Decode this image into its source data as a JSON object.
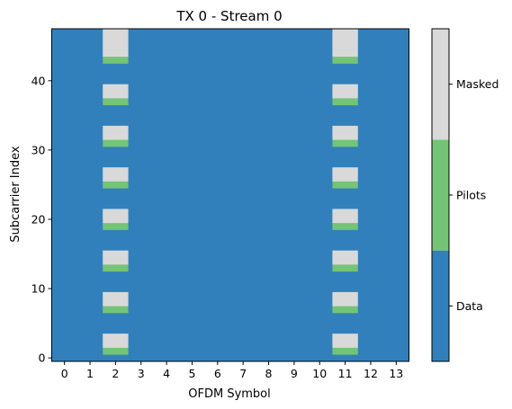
{
  "chart_data": {
    "type": "heatmap",
    "title": "TX 0 - Stream 0",
    "xlabel": "OFDM Symbol",
    "ylabel": "Subcarrier Index",
    "x_ticks": [
      "0",
      "1",
      "2",
      "3",
      "4",
      "5",
      "6",
      "7",
      "8",
      "9",
      "10",
      "11",
      "12",
      "13"
    ],
    "y_ticks": [
      "0",
      "10",
      "20",
      "30",
      "40"
    ],
    "num_symbols": 14,
    "num_subcarriers": 48,
    "pilot_symbols": [
      2,
      11
    ],
    "pilot_subcarriers": [
      1,
      7,
      13,
      19,
      25,
      31,
      37,
      43
    ],
    "masked_subcarriers": [
      2,
      3,
      8,
      9,
      14,
      15,
      20,
      21,
      26,
      27,
      32,
      33,
      38,
      39,
      44,
      45,
      46,
      47
    ],
    "categories": [
      {
        "label": "Data",
        "color": "#3180bc"
      },
      {
        "label": "Pilots",
        "color": "#74c476"
      },
      {
        "label": "Masked",
        "color": "#d9d9d9"
      }
    ]
  }
}
